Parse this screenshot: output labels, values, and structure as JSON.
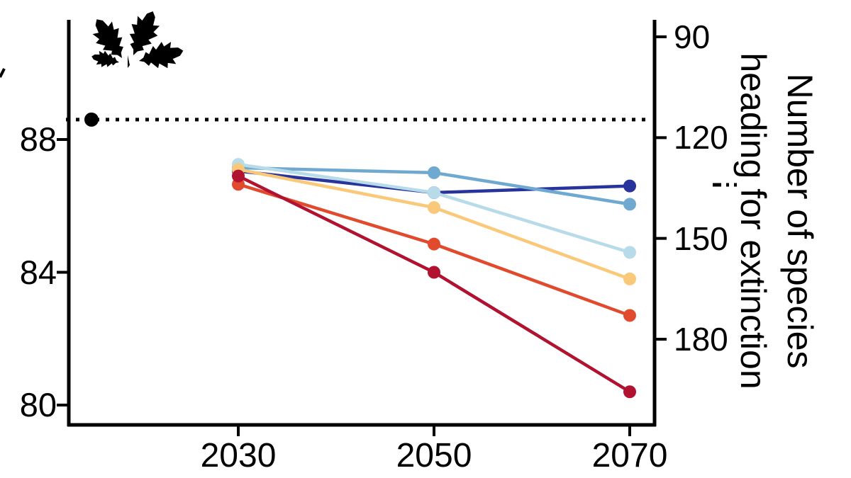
{
  "chart_data": {
    "type": "line",
    "title": "",
    "x_label": "",
    "x_tick_labels": [
      "2030",
      "2050",
      "2070"
    ],
    "x_values": [
      2030,
      2050,
      2070
    ],
    "left_axis": {
      "tick_labels": [
        "88",
        "84",
        "80"
      ],
      "tick_values": [
        88,
        84,
        80
      ],
      "range": [
        79.4,
        91.6
      ]
    },
    "right_axis": {
      "tick_labels": [
        "90",
        "120",
        "150",
        "180"
      ],
      "tick_values": [
        90,
        120,
        150,
        180
      ],
      "title_line1": "Number of species",
      "title_line2": "heading for extinction"
    },
    "series": [
      {
        "name": "dark-navy",
        "color": "#28339c",
        "values": [
          87.05,
          86.4,
          86.6
        ]
      },
      {
        "name": "medium-blue",
        "color": "#6fa9d0",
        "values": [
          87.15,
          87.0,
          86.05
        ]
      },
      {
        "name": "light-blue",
        "color": "#b7dbe9",
        "values": [
          87.25,
          86.4,
          84.6
        ]
      },
      {
        "name": "pale-yellow",
        "color": "#f9c878",
        "values": [
          87.1,
          85.95,
          83.8
        ]
      },
      {
        "name": "orange-red",
        "color": "#e14a2c",
        "values": [
          86.65,
          84.85,
          82.7
        ]
      },
      {
        "name": "dark-red",
        "color": "#b01230",
        "values": [
          86.9,
          84.0,
          80.4
        ]
      }
    ],
    "reference_line": {
      "style": "dotted",
      "color": "#000000",
      "value": 88.6
    },
    "reference_point": {
      "year": 2015,
      "value": 88.6,
      "color": "#000000"
    },
    "icon": "oak-leaves-icon",
    "grid": "off",
    "legend": "none"
  }
}
